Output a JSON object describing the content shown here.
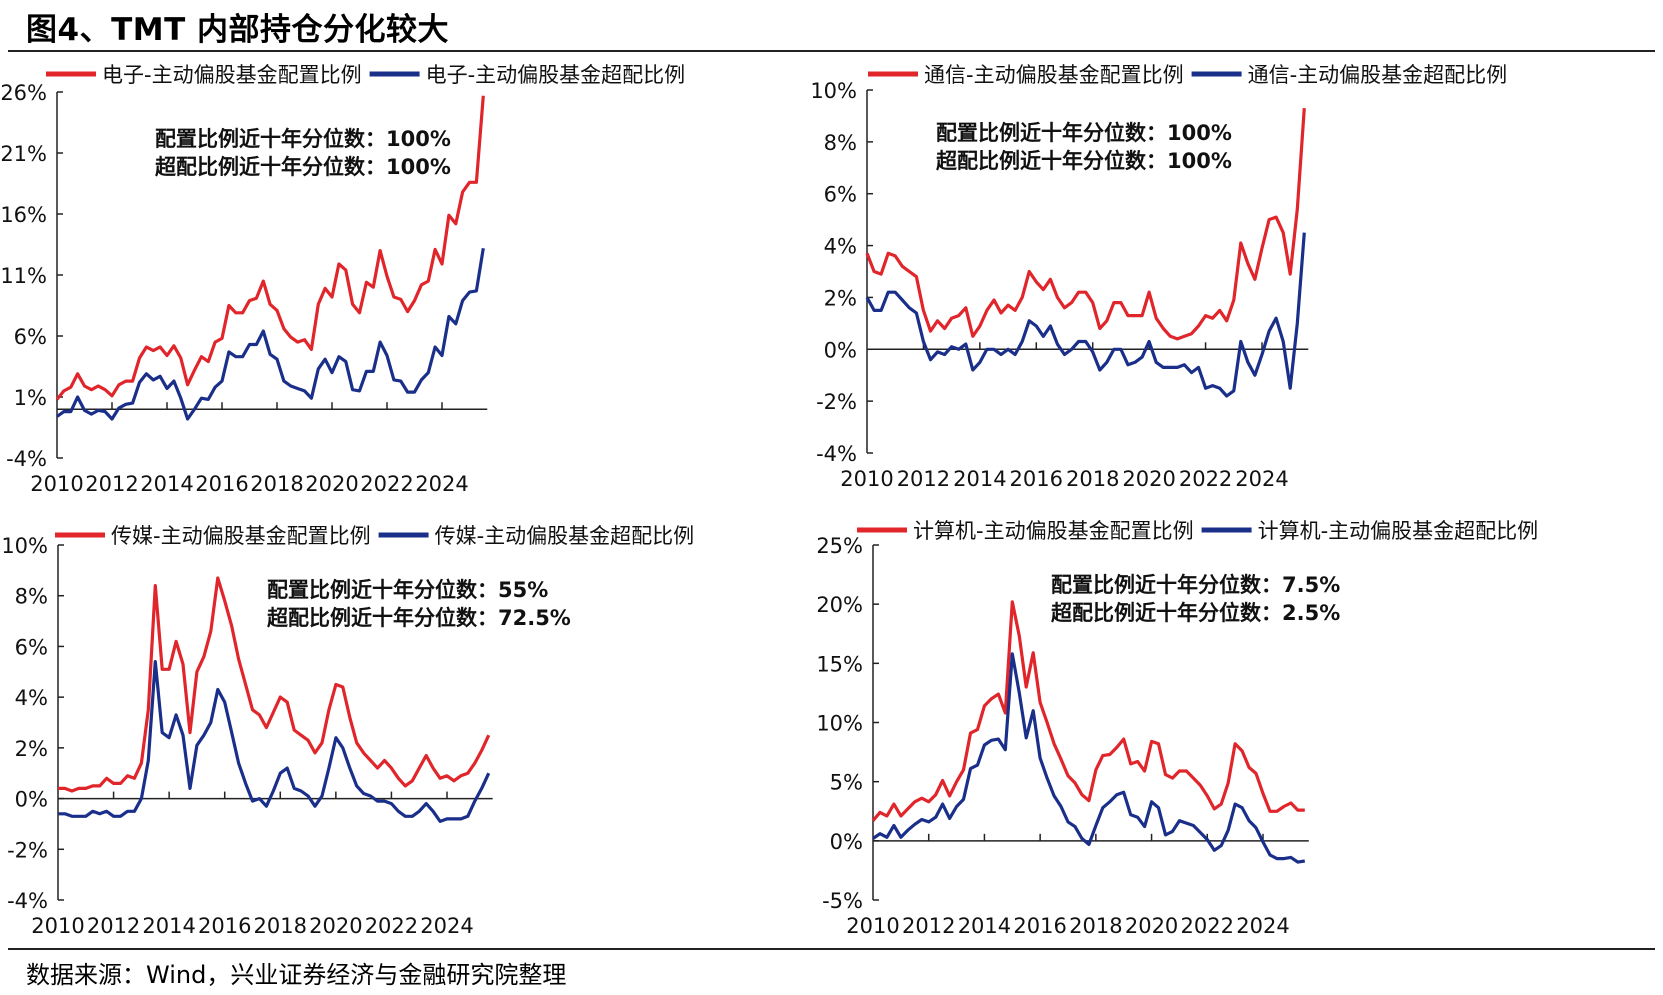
{
  "title": "图4、TMT 内部持仓分化较大",
  "source": "数据来源：Wind，兴业证券经济与金融研究院整理",
  "colors": {
    "allocation": "#e0252b",
    "overweight": "#1a2f8a"
  },
  "chart_data": [
    {
      "type": "line",
      "x_start": "2010Q1",
      "frequency": "quarterly",
      "xticks": [
        "2010",
        "2012",
        "2014",
        "2016",
        "2018",
        "2020",
        "2022",
        "2024"
      ],
      "ylim": [
        -4,
        26
      ],
      "yticks": [
        -4,
        1,
        6,
        11,
        16,
        21,
        26
      ],
      "y_unit": "%",
      "annotations": [
        "配置比例近十年分位数：100%",
        "超配比例近十年分位数：100%"
      ],
      "legend_position": "top",
      "series": [
        {
          "name": "电子-主动偏股基金配置比例",
          "color": "#e0252b",
          "values": [
            0.8,
            1.5,
            1.8,
            2.9,
            1.9,
            1.6,
            1.9,
            1.6,
            1.1,
            2.0,
            2.3,
            2.3,
            4.2,
            5.1,
            4.8,
            5.1,
            4.4,
            5.2,
            4.2,
            2.0,
            3.2,
            4.3,
            3.9,
            5.5,
            5.8,
            8.5,
            7.9,
            7.9,
            8.9,
            9.1,
            10.5,
            8.6,
            8.1,
            6.6,
            5.9,
            5.5,
            5.7,
            4.9,
            8.6,
            9.9,
            9.2,
            11.9,
            11.4,
            8.6,
            7.9,
            10.4,
            10.0,
            13.0,
            10.9,
            9.2,
            9.0,
            8.0,
            8.9,
            10.2,
            10.5,
            13.1,
            11.9,
            15.9,
            15.2,
            17.8,
            18.6,
            18.6,
            25.7
          ]
        },
        {
          "name": "电子-主动偏股基金超配比例",
          "color": "#1a2f8a",
          "values": [
            -0.6,
            -0.2,
            -0.2,
            1.0,
            -0.1,
            -0.4,
            -0.1,
            -0.2,
            -0.8,
            0.1,
            0.4,
            0.5,
            2.2,
            2.9,
            2.4,
            2.7,
            1.7,
            2.3,
            0.9,
            -0.8,
            0.0,
            0.9,
            0.8,
            1.8,
            2.3,
            4.7,
            4.3,
            4.3,
            5.3,
            5.3,
            6.4,
            4.5,
            4.1,
            2.3,
            1.9,
            1.7,
            1.5,
            0.9,
            3.3,
            4.1,
            3.0,
            4.3,
            3.9,
            1.6,
            1.5,
            3.1,
            3.1,
            5.5,
            4.4,
            2.4,
            2.3,
            1.4,
            1.4,
            2.4,
            3.0,
            5.1,
            4.4,
            7.6,
            7.0,
            8.9,
            9.6,
            9.7,
            13.2
          ]
        }
      ]
    },
    {
      "type": "line",
      "x_start": "2010Q1",
      "frequency": "quarterly",
      "xticks": [
        "2010",
        "2012",
        "2014",
        "2016",
        "2018",
        "2020",
        "2022",
        "2024"
      ],
      "ylim": [
        -4,
        10
      ],
      "yticks": [
        -4,
        -2,
        0,
        2,
        4,
        6,
        8,
        10
      ],
      "y_unit": "%",
      "annotations": [
        "配置比例近十年分位数：100%",
        "超配比例近十年分位数：100%"
      ],
      "legend_position": "top",
      "series": [
        {
          "name": "通信-主动偏股基金配置比例",
          "color": "#e0252b",
          "values": [
            3.7,
            3.0,
            2.9,
            3.7,
            3.6,
            3.2,
            3.0,
            2.8,
            1.5,
            0.7,
            1.1,
            0.8,
            1.2,
            1.3,
            1.6,
            0.5,
            0.9,
            1.5,
            1.9,
            1.4,
            1.7,
            1.5,
            2.0,
            3.0,
            2.6,
            2.3,
            2.7,
            2.0,
            1.6,
            1.8,
            2.2,
            2.2,
            1.8,
            0.8,
            1.1,
            1.8,
            1.8,
            1.3,
            1.3,
            1.3,
            2.2,
            1.2,
            0.8,
            0.5,
            0.4,
            0.5,
            0.6,
            0.9,
            1.3,
            1.2,
            1.5,
            1.1,
            1.9,
            4.1,
            3.3,
            2.7,
            3.9,
            5.0,
            5.1,
            4.5,
            2.9,
            5.4,
            9.3
          ]
        },
        {
          "name": "通信-主动偏股基金超配比例",
          "color": "#1a2f8a",
          "values": [
            2.0,
            1.5,
            1.5,
            2.2,
            2.2,
            1.9,
            1.6,
            1.4,
            0.3,
            -0.4,
            -0.1,
            -0.2,
            0.1,
            0.0,
            0.2,
            -0.8,
            -0.5,
            0.0,
            0.0,
            -0.2,
            0.0,
            -0.2,
            0.3,
            1.1,
            0.9,
            0.5,
            0.9,
            0.2,
            -0.2,
            0.0,
            0.3,
            0.3,
            -0.1,
            -0.8,
            -0.5,
            0.0,
            0.0,
            -0.6,
            -0.5,
            -0.3,
            0.3,
            -0.5,
            -0.7,
            -0.7,
            -0.7,
            -0.6,
            -0.9,
            -0.7,
            -1.5,
            -1.4,
            -1.5,
            -1.8,
            -1.6,
            0.3,
            -0.5,
            -1.0,
            -0.2,
            0.7,
            1.2,
            0.3,
            -1.5,
            1.0,
            4.5
          ]
        }
      ]
    },
    {
      "type": "line",
      "x_start": "2010Q1",
      "frequency": "quarterly",
      "xticks": [
        "2010",
        "2012",
        "2014",
        "2016",
        "2018",
        "2020",
        "2022",
        "2024"
      ],
      "ylim": [
        -4,
        10
      ],
      "yticks": [
        -4,
        -2,
        0,
        2,
        4,
        6,
        8,
        10
      ],
      "y_unit": "%",
      "annotations": [
        "配置比例近十年分位数：55%",
        "超配比例近十年分位数：72.5%"
      ],
      "legend_position": "top",
      "series": [
        {
          "name": "传媒-主动偏股基金配置比例",
          "color": "#e0252b",
          "values": [
            0.4,
            0.4,
            0.3,
            0.4,
            0.4,
            0.5,
            0.5,
            0.8,
            0.6,
            0.6,
            0.9,
            0.8,
            1.4,
            3.5,
            8.4,
            5.1,
            5.1,
            6.2,
            5.3,
            2.6,
            5.0,
            5.6,
            6.6,
            8.7,
            7.8,
            6.8,
            5.5,
            4.5,
            3.5,
            3.3,
            2.8,
            3.4,
            4.0,
            3.8,
            2.7,
            2.5,
            2.3,
            1.8,
            2.2,
            3.5,
            4.5,
            4.4,
            3.2,
            2.2,
            1.8,
            1.5,
            1.2,
            1.5,
            1.2,
            0.8,
            0.5,
            0.7,
            1.2,
            1.7,
            1.2,
            0.8,
            0.9,
            0.7,
            0.9,
            1.0,
            1.4,
            1.9,
            2.5
          ]
        },
        {
          "name": "传媒-主动偏股基金超配比例",
          "color": "#1a2f8a",
          "values": [
            -0.6,
            -0.6,
            -0.7,
            -0.7,
            -0.7,
            -0.5,
            -0.6,
            -0.5,
            -0.7,
            -0.7,
            -0.5,
            -0.5,
            0.0,
            1.5,
            5.4,
            2.6,
            2.4,
            3.3,
            2.5,
            0.4,
            2.1,
            2.5,
            3.0,
            4.3,
            3.8,
            2.6,
            1.4,
            0.6,
            -0.1,
            0.0,
            -0.3,
            0.3,
            1.0,
            1.2,
            0.4,
            0.3,
            0.1,
            -0.3,
            0.1,
            1.2,
            2.4,
            2.0,
            1.2,
            0.5,
            0.2,
            0.1,
            -0.1,
            -0.1,
            -0.2,
            -0.5,
            -0.7,
            -0.7,
            -0.5,
            -0.2,
            -0.5,
            -0.9,
            -0.8,
            -0.8,
            -0.8,
            -0.7,
            -0.1,
            0.4,
            1.0
          ]
        }
      ]
    },
    {
      "type": "line",
      "x_start": "2010Q1",
      "frequency": "quarterly",
      "xticks": [
        "2010",
        "2012",
        "2014",
        "2016",
        "2018",
        "2020",
        "2022",
        "2024"
      ],
      "ylim": [
        -5,
        25
      ],
      "yticks": [
        -5,
        0,
        5,
        10,
        15,
        20,
        25
      ],
      "y_unit": "%",
      "annotations": [
        "配置比例近十年分位数：7.5%",
        "超配比例近十年分位数：2.5%"
      ],
      "legend_position": "top",
      "series": [
        {
          "name": "计算机-主动偏股基金配置比例",
          "color": "#e0252b",
          "values": [
            1.7,
            2.4,
            2.1,
            3.1,
            2.1,
            2.7,
            3.3,
            3.6,
            3.3,
            3.9,
            5.1,
            3.8,
            5.0,
            6.0,
            9.1,
            9.4,
            11.4,
            12.0,
            12.4,
            10.8,
            20.2,
            17.3,
            13.0,
            15.9,
            11.7,
            10.0,
            8.2,
            6.9,
            5.5,
            4.9,
            3.9,
            3.4,
            6.0,
            7.2,
            7.3,
            7.9,
            8.6,
            6.5,
            6.7,
            5.9,
            8.4,
            8.2,
            5.6,
            5.3,
            5.9,
            5.9,
            5.3,
            4.7,
            3.8,
            2.7,
            3.1,
            4.9,
            8.2,
            7.6,
            6.2,
            5.7,
            4.0,
            2.5,
            2.5,
            2.9,
            3.2,
            2.6,
            2.6
          ]
        },
        {
          "name": "计算机-主动偏股基金超配比例",
          "color": "#1a2f8a",
          "values": [
            0.2,
            0.6,
            0.3,
            1.3,
            0.3,
            0.9,
            1.4,
            1.8,
            1.6,
            2.0,
            3.1,
            1.9,
            2.9,
            3.5,
            6.1,
            6.4,
            8.1,
            8.5,
            8.6,
            7.7,
            15.8,
            12.5,
            8.7,
            11.0,
            7.0,
            5.3,
            3.8,
            2.9,
            1.6,
            1.2,
            0.2,
            -0.3,
            1.3,
            2.8,
            3.3,
            3.9,
            4.1,
            2.2,
            2.0,
            1.2,
            3.3,
            2.8,
            0.5,
            0.8,
            1.7,
            1.5,
            1.3,
            0.7,
            0.1,
            -0.8,
            -0.4,
            0.9,
            3.1,
            2.8,
            1.7,
            1.1,
            -0.1,
            -1.2,
            -1.5,
            -1.5,
            -1.4,
            -1.8,
            -1.7
          ]
        }
      ]
    }
  ]
}
